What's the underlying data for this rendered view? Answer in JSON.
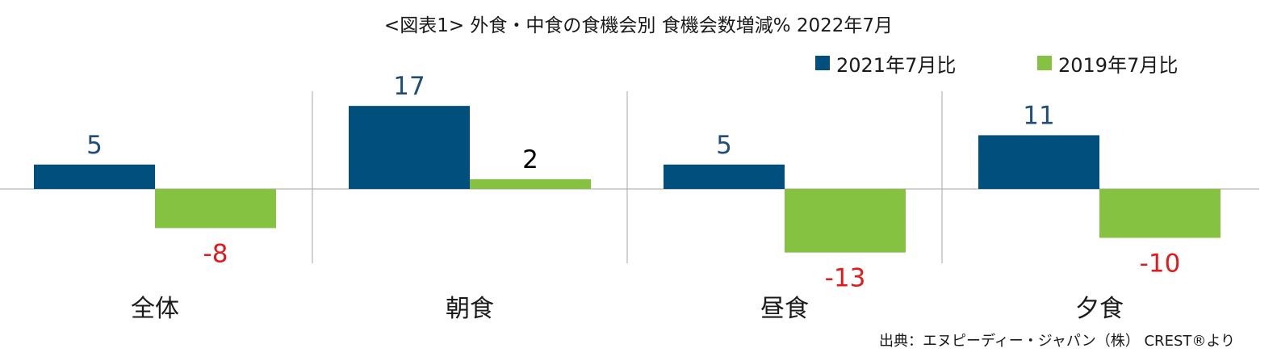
{
  "chart_data": {
    "type": "bar",
    "title": "<図表1> 外食・中食の食機会別 食機会数増減% 2022年7月",
    "categories": [
      "全体",
      "朝食",
      "昼食",
      "夕食"
    ],
    "series": [
      {
        "name": "2021年7月比",
        "values": [
          5,
          17,
          5,
          11
        ],
        "color": "#004f7c"
      },
      {
        "name": "2019年7月比",
        "values": [
          -8,
          2,
          -13,
          -10
        ],
        "color": "#86c242"
      }
    ],
    "ylim": [
      -15,
      20
    ],
    "grid": false,
    "legend_position": "top-right",
    "negative_label_color": "#e31a1c",
    "label_color_2021": "#1f4e79",
    "label_color_2019_positive": "#000000",
    "source": "出典：エヌピーディー・ジャパン（株） CREST®より"
  }
}
